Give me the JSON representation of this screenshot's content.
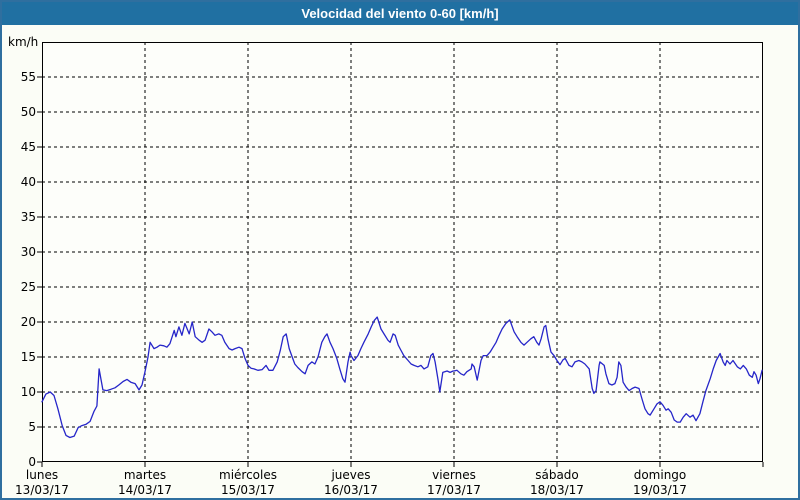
{
  "header": {
    "title": "Velocidad del viento 0-60 [km/h]"
  },
  "colors": {
    "header_bg": "#2070a2",
    "frame_border": "#2f6f9f",
    "background": "#fbfdf6",
    "plot_background": "#fdfefa",
    "plot_border": "#000000",
    "grid": "#000000",
    "line": "#2626c9",
    "text": "#000000",
    "title_text": "#ffffff"
  },
  "chart_data": {
    "type": "line",
    "title": "Velocidad del viento 0-60 [km/h]",
    "ylabel": "km/h",
    "xlabel": "",
    "ylim": [
      0,
      60
    ],
    "xlim_hours": [
      0,
      168
    ],
    "y_ticks": [
      0,
      5,
      10,
      15,
      20,
      25,
      30,
      35,
      40,
      45,
      50,
      55
    ],
    "grid": "dashed",
    "legend": "none",
    "x_days": [
      {
        "name": "lunes",
        "date": "13/03/17"
      },
      {
        "name": "martes",
        "date": "14/03/17"
      },
      {
        "name": "miércoles",
        "date": "15/03/17"
      },
      {
        "name": "jueves",
        "date": "16/03/17"
      },
      {
        "name": "viernes",
        "date": "17/03/17"
      },
      {
        "name": "sábado",
        "date": "18/03/17"
      },
      {
        "name": "domingo",
        "date": "19/03/17"
      }
    ],
    "series": [
      {
        "name": "velocidad del viento",
        "color": "#2626c9",
        "x_hours": [
          0.0,
          0.9,
          1.9,
          2.8,
          3.7,
          4.7,
          5.6,
          6.5,
          7.5,
          8.4,
          9.3,
          10.3,
          11.2,
          12.1,
          12.8,
          13.3,
          14.2,
          15.1,
          16.1,
          17.0,
          17.9,
          18.9,
          19.8,
          20.7,
          21.7,
          22.6,
          23.3,
          24.0,
          24.7,
          25.2,
          26.1,
          26.8,
          27.5,
          28.4,
          29.1,
          29.8,
          30.8,
          31.2,
          31.9,
          32.6,
          33.3,
          34.3,
          35.0,
          35.7,
          36.6,
          37.3,
          38.0,
          38.9,
          39.6,
          40.3,
          41.2,
          41.9,
          42.6,
          43.6,
          44.3,
          45.0,
          45.9,
          46.6,
          47.3,
          48.0,
          48.7,
          49.4,
          50.3,
          51.3,
          52.2,
          52.9,
          53.8,
          54.8,
          55.5,
          56.2,
          56.9,
          57.6,
          58.3,
          58.9,
          59.6,
          60.6,
          61.3,
          62.0,
          62.9,
          63.6,
          64.3,
          65.2,
          65.9,
          66.4,
          67.1,
          67.8,
          68.7,
          69.4,
          70.1,
          70.6,
          71.3,
          71.8,
          72.0,
          72.7,
          73.6,
          74.3,
          75.0,
          76.0,
          76.7,
          77.4,
          78.1,
          79.0,
          79.7,
          80.6,
          81.1,
          81.8,
          82.3,
          83.0,
          83.6,
          84.3,
          85.3,
          86.0,
          86.7,
          87.6,
          88.3,
          89.0,
          89.9,
          90.6,
          91.1,
          91.6,
          92.3,
          92.7,
          93.4,
          94.4,
          95.1,
          95.8,
          96.0,
          96.7,
          97.6,
          98.3,
          99.0,
          100.0,
          100.2,
          100.7,
          101.4,
          102.3,
          102.8,
          103.7,
          104.4,
          105.1,
          105.8,
          106.5,
          107.2,
          108.1,
          109.0,
          110.0,
          110.7,
          111.6,
          112.3,
          113.0,
          113.9,
          114.6,
          115.3,
          115.8,
          116.3,
          117.0,
          117.4,
          117.9,
          118.6,
          119.3,
          120.0,
          120.7,
          121.4,
          121.9,
          122.8,
          123.5,
          124.2,
          125.1,
          125.8,
          126.5,
          127.5,
          128.2,
          128.6,
          129.1,
          129.8,
          130.0,
          131.0,
          131.4,
          132.1,
          132.8,
          133.5,
          134.0,
          134.4,
          134.9,
          135.4,
          136.1,
          136.8,
          137.5,
          138.2,
          139.1,
          139.8,
          140.5,
          141.2,
          141.7,
          142.6,
          143.3,
          144.0,
          144.7,
          145.4,
          145.9,
          146.6,
          147.3,
          148.0,
          148.7,
          149.4,
          150.1,
          151.0,
          151.7,
          152.4,
          153.3,
          154.0,
          154.7,
          155.7,
          156.4,
          157.1,
          158.0,
          158.7,
          159.2,
          159.6,
          160.3,
          161.0,
          162.0,
          162.7,
          163.4,
          164.1,
          164.8,
          165.5,
          165.9,
          166.4,
          166.9,
          167.3,
          167.8
        ],
        "y_kmh": [
          8.6,
          9.7,
          10.0,
          9.5,
          7.6,
          5.2,
          3.8,
          3.5,
          3.7,
          4.9,
          5.2,
          5.4,
          5.8,
          7.2,
          8.0,
          13.3,
          10.3,
          10.2,
          10.4,
          10.6,
          11.0,
          11.5,
          11.8,
          11.4,
          11.2,
          10.3,
          11.0,
          12.9,
          15.0,
          17.1,
          16.2,
          16.4,
          16.7,
          16.6,
          16.4,
          16.9,
          18.8,
          17.9,
          19.3,
          18.1,
          19.8,
          18.3,
          20.0,
          17.9,
          17.4,
          17.1,
          17.4,
          19.0,
          18.6,
          18.1,
          18.3,
          18.1,
          17.1,
          16.2,
          16.0,
          16.2,
          16.4,
          16.2,
          14.8,
          13.8,
          13.4,
          13.3,
          13.1,
          13.2,
          13.8,
          13.1,
          13.1,
          14.3,
          15.9,
          17.9,
          18.3,
          16.2,
          15.0,
          14.0,
          13.5,
          12.9,
          12.6,
          13.8,
          14.3,
          14.0,
          15.0,
          17.1,
          17.9,
          18.3,
          17.1,
          16.2,
          14.8,
          13.3,
          11.9,
          11.4,
          14.3,
          15.7,
          15.2,
          14.5,
          15.2,
          16.2,
          17.1,
          18.3,
          19.3,
          20.2,
          20.7,
          19.0,
          18.3,
          17.4,
          17.1,
          18.3,
          18.1,
          16.7,
          16.0,
          15.2,
          14.5,
          14.0,
          13.8,
          13.6,
          13.8,
          13.3,
          13.6,
          15.2,
          15.5,
          14.3,
          11.7,
          10.0,
          12.8,
          13.0,
          12.8,
          13.0,
          13.0,
          13.1,
          12.6,
          12.4,
          12.9,
          13.3,
          14.0,
          13.6,
          11.7,
          14.5,
          15.2,
          15.2,
          15.7,
          16.4,
          17.1,
          18.1,
          19.0,
          19.8,
          20.3,
          18.6,
          17.9,
          17.1,
          16.7,
          17.1,
          17.6,
          17.9,
          17.1,
          16.7,
          17.6,
          19.3,
          19.5,
          17.6,
          15.7,
          15.2,
          14.5,
          13.9,
          14.6,
          14.8,
          13.8,
          13.6,
          14.3,
          14.5,
          14.3,
          14.0,
          13.3,
          10.5,
          9.8,
          10.2,
          13.8,
          14.3,
          13.8,
          12.6,
          11.2,
          11.0,
          11.2,
          12.1,
          14.3,
          13.8,
          11.4,
          10.7,
          10.2,
          10.5,
          10.7,
          10.5,
          9.0,
          7.6,
          6.9,
          6.7,
          7.6,
          8.3,
          8.6,
          8.1,
          7.4,
          7.6,
          7.1,
          6.0,
          5.7,
          5.7,
          6.4,
          6.9,
          6.4,
          6.7,
          5.9,
          6.9,
          8.6,
          10.2,
          11.9,
          13.3,
          14.5,
          15.5,
          14.3,
          13.8,
          14.5,
          14.0,
          14.5,
          13.6,
          13.3,
          13.8,
          13.3,
          12.4,
          12.1,
          12.9,
          12.4,
          11.2,
          11.9,
          13.1
        ]
      }
    ]
  }
}
